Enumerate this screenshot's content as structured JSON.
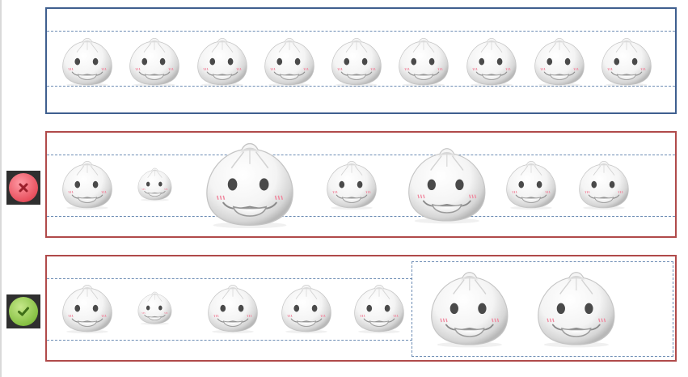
{
  "colors": {
    "row1_border": "#3f5f8f",
    "row2_border": "#b04a4a",
    "row3_border": "#b04a4a",
    "guide": "#6c8cb4",
    "wrong_badge": "#e8505e",
    "right_badge": "#86c043"
  },
  "rows": [
    {
      "id": "uniform-row",
      "bun_count": 9,
      "bun_relative_sizes": [
        1,
        1,
        1,
        1,
        1,
        1,
        1,
        1,
        1
      ],
      "badge": null
    },
    {
      "id": "inconsistent-row",
      "bun_count": 7,
      "bun_relative_sizes": [
        1,
        0.68,
        1.75,
        1,
        1.55,
        1,
        1
      ],
      "badge": "cross-icon"
    },
    {
      "id": "grouped-row",
      "bun_count": 7,
      "bun_relative_sizes": [
        1,
        0.68,
        1,
        1,
        1,
        1.55,
        1.55
      ],
      "badge": "check-icon"
    }
  ]
}
